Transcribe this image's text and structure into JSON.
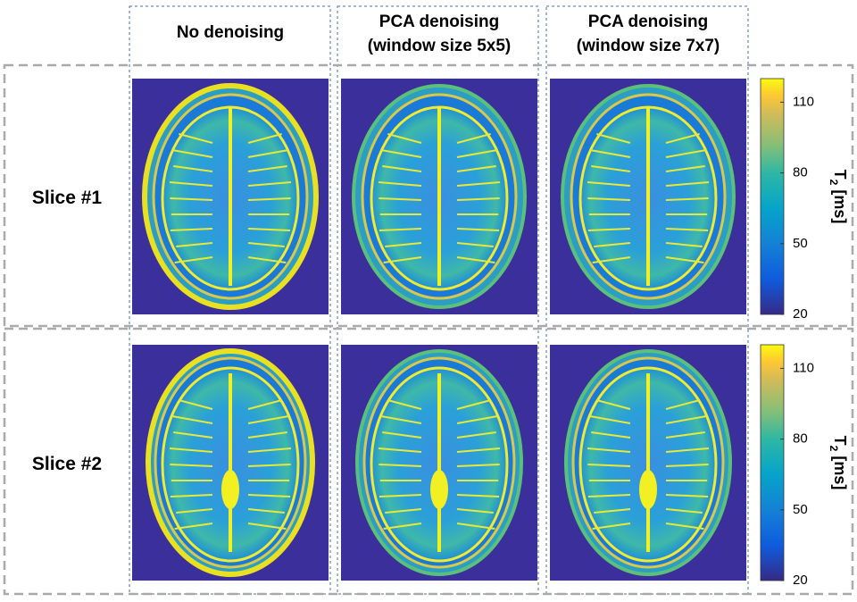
{
  "columns": [
    [
      "No denoising"
    ],
    [
      "PCA denoising",
      "(window size 5x5)"
    ],
    [
      "PCA denoising",
      "(window size 7x7)"
    ]
  ],
  "rows": [
    "Slice #1",
    "Slice #2"
  ],
  "colorbar": {
    "clim": [
      20,
      120
    ],
    "ticks": [
      20,
      50,
      80,
      110
    ],
    "label": {
      "symbol": "T",
      "subscript": "2",
      "unit": "[ms]"
    }
  }
}
